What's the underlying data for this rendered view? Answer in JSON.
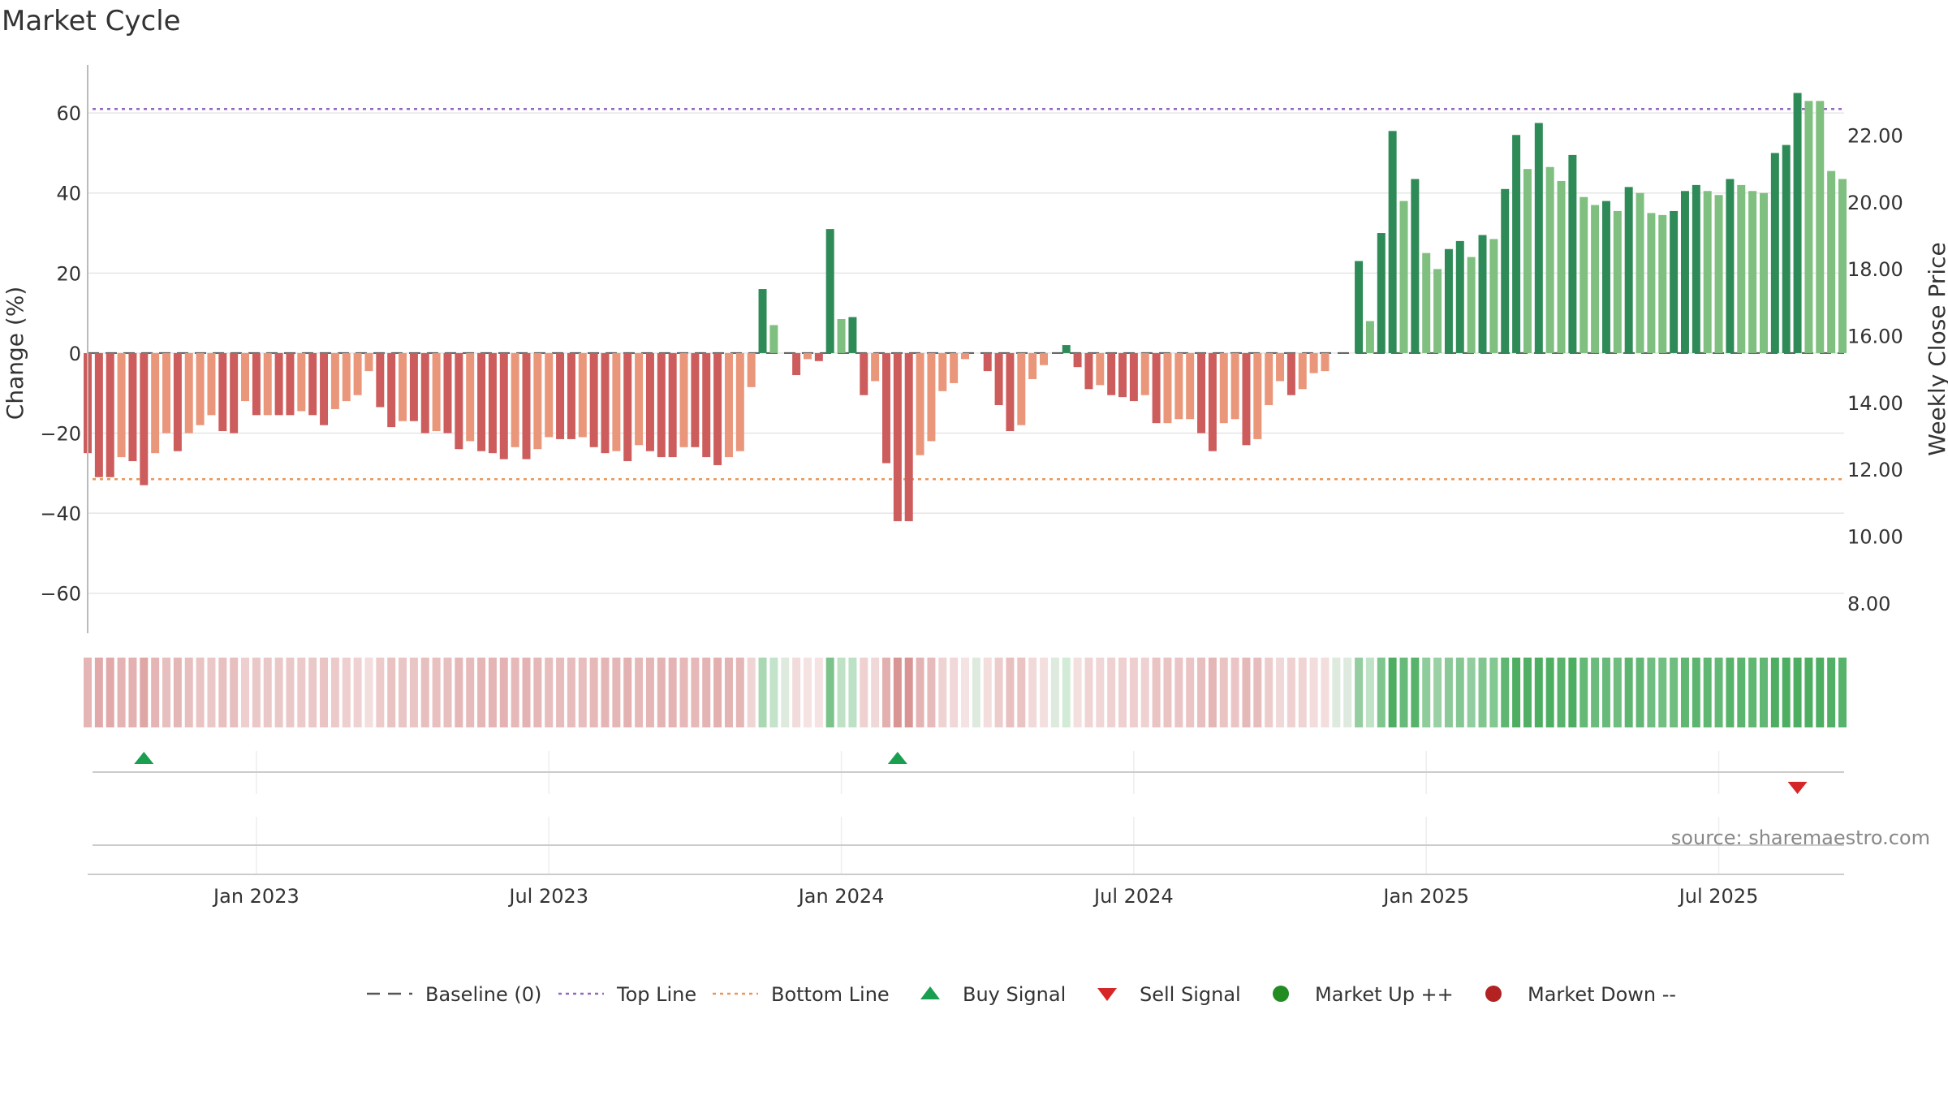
{
  "title": "Market Cycle",
  "source": "source: sharemaestro.com",
  "colors": {
    "up_strong": "#2e8b57",
    "up_light": "#7fbf7f",
    "down_strong": "#cd5c5c",
    "down_light": "#e9967a",
    "top_line": "#9467bd",
    "bottom_line": "#e9965a",
    "baseline": "#555555",
    "buy": "#1a9f50",
    "sell": "#d62728",
    "market_up": "#228b22",
    "market_down": "#b22222"
  },
  "legend": [
    {
      "label": "Baseline (0)",
      "kind": "dash",
      "color_key": "baseline"
    },
    {
      "label": "Top Line",
      "kind": "dot",
      "color_key": "top_line"
    },
    {
      "label": "Bottom Line",
      "kind": "dot",
      "color_key": "bottom_line"
    },
    {
      "label": "Buy Signal",
      "kind": "up-triangle",
      "color_key": "buy"
    },
    {
      "label": "Sell Signal",
      "kind": "down-triangle",
      "color_key": "sell"
    },
    {
      "label": "Market Up ++",
      "kind": "circle",
      "color_key": "market_up"
    },
    {
      "label": "Market Down --",
      "kind": "circle",
      "color_key": "market_down"
    }
  ],
  "chart_data": {
    "type": "bar",
    "x_axis": {
      "tick_labels": [
        "Jan 2023",
        "Jul 2023",
        "Jan 2024",
        "Jul 2024",
        "Jan 2025",
        "Jul 2025"
      ],
      "tick_week_index": [
        15,
        41,
        67,
        93,
        119,
        145
      ]
    },
    "y_left": {
      "label": "Change (%)",
      "range": [
        -70,
        72
      ],
      "ticks": [
        60,
        40,
        20,
        0,
        -20,
        -40,
        -60
      ],
      "tick_labels": [
        "60",
        "40",
        "20",
        "0",
        "−20",
        "−40",
        "−60"
      ]
    },
    "y_right": {
      "label": "Weekly Close Price",
      "range": [
        7.1,
        24.1
      ],
      "ticks": [
        22,
        20,
        18,
        16,
        14,
        12,
        10,
        8
      ],
      "tick_labels": [
        "22.00",
        "20.00",
        "18.00",
        "16.00",
        "14.00",
        "12.00",
        "10.00",
        "8.00"
      ]
    },
    "top_line": 61,
    "bottom_line": -31.5,
    "baseline": 0,
    "grid": true,
    "legend_position": "bottom",
    "bars": [
      {
        "v": -25,
        "s": 1
      },
      {
        "v": -31,
        "s": 1
      },
      {
        "v": -31,
        "s": 1
      },
      {
        "v": -26,
        "s": 0
      },
      {
        "v": -27,
        "s": 1
      },
      {
        "v": -33,
        "s": 1
      },
      {
        "v": -25,
        "s": 0
      },
      {
        "v": -20,
        "s": 0
      },
      {
        "v": -24.5,
        "s": 1
      },
      {
        "v": -20,
        "s": 0
      },
      {
        "v": -18,
        "s": 0
      },
      {
        "v": -15.5,
        "s": 0
      },
      {
        "v": -19.5,
        "s": 1
      },
      {
        "v": -20,
        "s": 1
      },
      {
        "v": -12,
        "s": 0
      },
      {
        "v": -15.5,
        "s": 1
      },
      {
        "v": -15.5,
        "s": 0
      },
      {
        "v": -15.5,
        "s": 1
      },
      {
        "v": -15.5,
        "s": 1
      },
      {
        "v": -14.5,
        "s": 0
      },
      {
        "v": -15.5,
        "s": 1
      },
      {
        "v": -18,
        "s": 1
      },
      {
        "v": -14,
        "s": 0
      },
      {
        "v": -12,
        "s": 0
      },
      {
        "v": -10.5,
        "s": 0
      },
      {
        "v": -4.5,
        "s": 0
      },
      {
        "v": -13.5,
        "s": 1
      },
      {
        "v": -18.5,
        "s": 1
      },
      {
        "v": -17,
        "s": 0
      },
      {
        "v": -17,
        "s": 1
      },
      {
        "v": -20,
        "s": 1
      },
      {
        "v": -19.5,
        "s": 0
      },
      {
        "v": -20,
        "s": 1
      },
      {
        "v": -24,
        "s": 1
      },
      {
        "v": -22,
        "s": 0
      },
      {
        "v": -24.5,
        "s": 1
      },
      {
        "v": -25,
        "s": 1
      },
      {
        "v": -26.5,
        "s": 1
      },
      {
        "v": -23.5,
        "s": 0
      },
      {
        "v": -26.5,
        "s": 1
      },
      {
        "v": -24,
        "s": 0
      },
      {
        "v": -21,
        "s": 0
      },
      {
        "v": -21.5,
        "s": 1
      },
      {
        "v": -21.5,
        "s": 1
      },
      {
        "v": -21,
        "s": 0
      },
      {
        "v": -23.5,
        "s": 1
      },
      {
        "v": -25,
        "s": 1
      },
      {
        "v": -24.5,
        "s": 0
      },
      {
        "v": -27,
        "s": 1
      },
      {
        "v": -23,
        "s": 0
      },
      {
        "v": -24.5,
        "s": 1
      },
      {
        "v": -26,
        "s": 1
      },
      {
        "v": -26,
        "s": 1
      },
      {
        "v": -23.5,
        "s": 0
      },
      {
        "v": -23.5,
        "s": 1
      },
      {
        "v": -26,
        "s": 1
      },
      {
        "v": -28,
        "s": 1
      },
      {
        "v": -26,
        "s": 0
      },
      {
        "v": -24.5,
        "s": 0
      },
      {
        "v": -8.5,
        "s": 0
      },
      {
        "v": 16,
        "s": 1
      },
      {
        "v": 7,
        "s": 0
      },
      {
        "v": 0,
        "s": 0
      },
      {
        "v": -5.5,
        "s": 1
      },
      {
        "v": -1.5,
        "s": 0
      },
      {
        "v": -2,
        "s": 1
      },
      {
        "v": 31,
        "s": 1
      },
      {
        "v": 8.5,
        "s": 0
      },
      {
        "v": 9,
        "s": 1
      },
      {
        "v": -10.5,
        "s": 1
      },
      {
        "v": -7,
        "s": 0
      },
      {
        "v": -27.5,
        "s": 1
      },
      {
        "v": -42,
        "s": 1
      },
      {
        "v": -42,
        "s": 1
      },
      {
        "v": -25.5,
        "s": 0
      },
      {
        "v": -22,
        "s": 0
      },
      {
        "v": -9.5,
        "s": 0
      },
      {
        "v": -7.5,
        "s": 0
      },
      {
        "v": -1.5,
        "s": 0
      },
      {
        "v": 0,
        "s": 0
      },
      {
        "v": -4.5,
        "s": 1
      },
      {
        "v": -13,
        "s": 1
      },
      {
        "v": -19.5,
        "s": 1
      },
      {
        "v": -18,
        "s": 0
      },
      {
        "v": -6.5,
        "s": 0
      },
      {
        "v": -3,
        "s": 0
      },
      {
        "v": 0,
        "s": 0
      },
      {
        "v": 2,
        "s": 1
      },
      {
        "v": -3.5,
        "s": 1
      },
      {
        "v": -9,
        "s": 1
      },
      {
        "v": -8,
        "s": 0
      },
      {
        "v": -10.5,
        "s": 1
      },
      {
        "v": -11,
        "s": 1
      },
      {
        "v": -12,
        "s": 1
      },
      {
        "v": -10.5,
        "s": 0
      },
      {
        "v": -17.5,
        "s": 1
      },
      {
        "v": -17.5,
        "s": 0
      },
      {
        "v": -16.5,
        "s": 0
      },
      {
        "v": -16.5,
        "s": 0
      },
      {
        "v": -20,
        "s": 1
      },
      {
        "v": -24.5,
        "s": 1
      },
      {
        "v": -17.5,
        "s": 0
      },
      {
        "v": -16.5,
        "s": 0
      },
      {
        "v": -23,
        "s": 1
      },
      {
        "v": -21.5,
        "s": 0
      },
      {
        "v": -13,
        "s": 0
      },
      {
        "v": -7,
        "s": 0
      },
      {
        "v": -10.5,
        "s": 1
      },
      {
        "v": -9,
        "s": 0
      },
      {
        "v": -5,
        "s": 0
      },
      {
        "v": -4.5,
        "s": 0
      },
      {
        "v": 0,
        "s": 0
      },
      {
        "v": 0,
        "s": 0
      },
      {
        "v": 23,
        "s": 1
      },
      {
        "v": 8,
        "s": 0
      },
      {
        "v": 30,
        "s": 1
      },
      {
        "v": 55.5,
        "s": 1
      },
      {
        "v": 38,
        "s": 0
      },
      {
        "v": 43.5,
        "s": 1
      },
      {
        "v": 25,
        "s": 0
      },
      {
        "v": 21,
        "s": 0
      },
      {
        "v": 26,
        "s": 1
      },
      {
        "v": 28,
        "s": 1
      },
      {
        "v": 24,
        "s": 0
      },
      {
        "v": 29.5,
        "s": 1
      },
      {
        "v": 28.5,
        "s": 0
      },
      {
        "v": 41,
        "s": 1
      },
      {
        "v": 54.5,
        "s": 1
      },
      {
        "v": 46,
        "s": 0
      },
      {
        "v": 57.5,
        "s": 1
      },
      {
        "v": 46.5,
        "s": 0
      },
      {
        "v": 43,
        "s": 0
      },
      {
        "v": 49.5,
        "s": 1
      },
      {
        "v": 39,
        "s": 0
      },
      {
        "v": 37,
        "s": 0
      },
      {
        "v": 38,
        "s": 1
      },
      {
        "v": 35.5,
        "s": 0
      },
      {
        "v": 41.5,
        "s": 1
      },
      {
        "v": 40,
        "s": 0
      },
      {
        "v": 35,
        "s": 0
      },
      {
        "v": 34.5,
        "s": 0
      },
      {
        "v": 35.5,
        "s": 1
      },
      {
        "v": 40.5,
        "s": 1
      },
      {
        "v": 42,
        "s": 1
      },
      {
        "v": 40.5,
        "s": 0
      },
      {
        "v": 39.5,
        "s": 0
      },
      {
        "v": 43.5,
        "s": 1
      },
      {
        "v": 42,
        "s": 0
      },
      {
        "v": 40.5,
        "s": 0
      },
      {
        "v": 40,
        "s": 0
      },
      {
        "v": 50,
        "s": 1
      },
      {
        "v": 52,
        "s": 1
      },
      {
        "v": 65,
        "s": 1
      },
      {
        "v": 63,
        "s": 0
      },
      {
        "v": 63,
        "s": 0
      },
      {
        "v": 45.5,
        "s": 0
      },
      {
        "v": 43.5,
        "s": 0
      }
    ],
    "buy_signals_week_index": [
      5,
      72
    ],
    "sell_signals_week_index": [
      152
    ]
  }
}
